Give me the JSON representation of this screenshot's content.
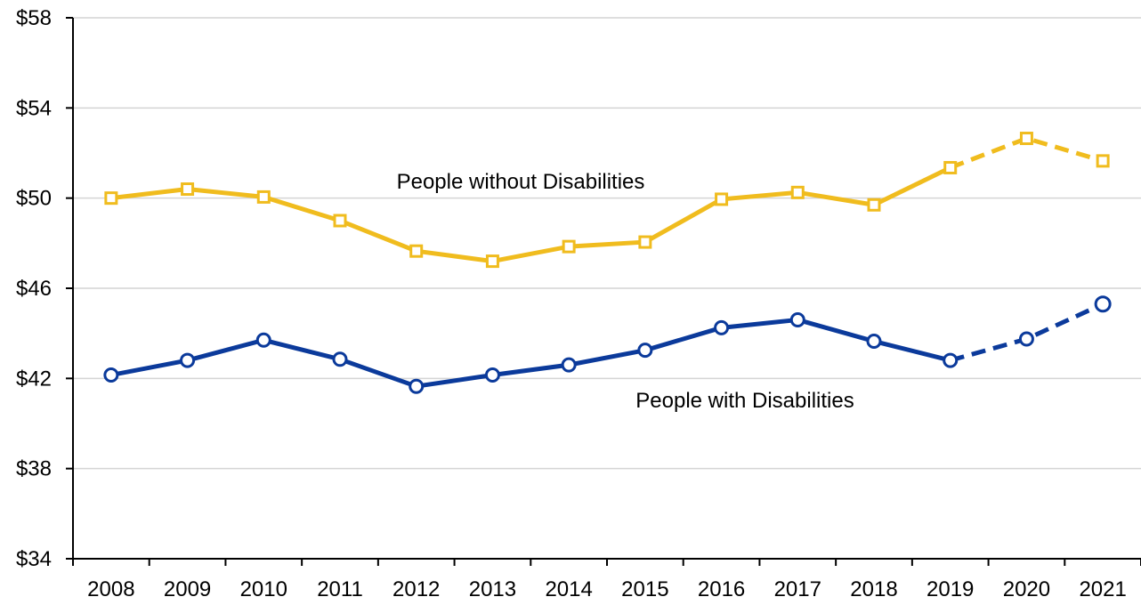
{
  "chart_data": {
    "type": "line",
    "title": "",
    "xlabel": "",
    "ylabel": "",
    "x": [
      "2008",
      "2009",
      "2010",
      "2011",
      "2012",
      "2013",
      "2014",
      "2015",
      "2016",
      "2017",
      "2018",
      "2019",
      "2020",
      "2021"
    ],
    "ylim": [
      34,
      58
    ],
    "yticks": [
      34,
      38,
      42,
      46,
      50,
      54,
      58
    ],
    "ytick_labels": [
      "$34",
      "$38",
      "$42",
      "$46",
      "$50",
      "$54",
      "$58"
    ],
    "grid": "horizontal",
    "legend": "none (series labelled inline)",
    "series": [
      {
        "name": "People without Disabilities",
        "color": "#F0BC1E",
        "marker": "square",
        "values": [
          50.0,
          50.4,
          50.05,
          49.0,
          47.65,
          47.2,
          47.85,
          48.05,
          49.95,
          50.25,
          49.7,
          51.35,
          52.65,
          51.65
        ],
        "dashed_from": "2019"
      },
      {
        "name": "People with Disabilities",
        "color": "#0B3A9B",
        "marker": "circle",
        "values": [
          42.15,
          42.8,
          43.7,
          42.85,
          41.65,
          42.15,
          42.6,
          43.25,
          44.25,
          44.6,
          43.65,
          42.8,
          43.75,
          45.3
        ],
        "dashed_from": "2019"
      }
    ]
  }
}
